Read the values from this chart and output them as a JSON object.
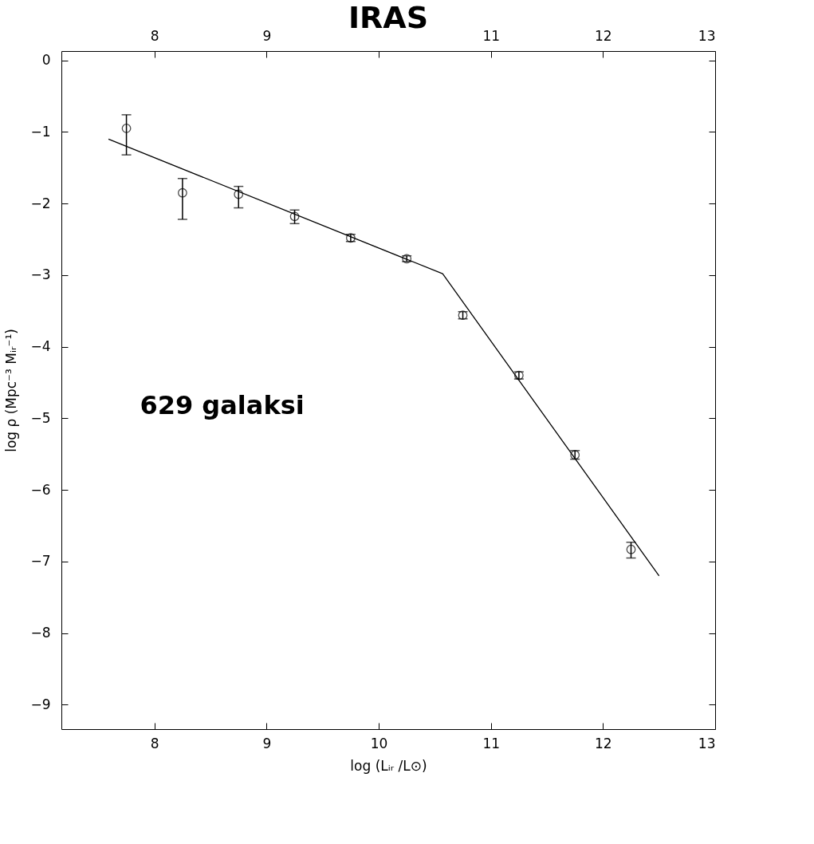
{
  "chart_data": {
    "type": "scatter",
    "xlabel": "log (Lᵢᵣ /L⊙)",
    "ylabel": "log ρ (Mpc⁻³ Mᵢᵣ⁻¹)",
    "annotations": [
      "IRAS",
      "629 galaksi"
    ],
    "xlim": [
      7.17,
      13
    ],
    "xticks": [
      8,
      9,
      10,
      11,
      12,
      13
    ],
    "x2lim": [
      7.17,
      13
    ],
    "x2ticks": [
      8,
      9,
      {
        "value": 10,
        "label": null
      },
      11,
      12,
      13
    ],
    "ylim": [
      -9.34,
      0.13
    ],
    "yticks": [
      0,
      -1,
      -2,
      -3,
      -4,
      -5,
      -6,
      -7,
      -8,
      -9
    ],
    "grid": false,
    "series": [
      {
        "marker": "circle",
        "color": "#000000",
        "x": [
          7.75,
          8.25,
          8.75,
          9.25,
          9.75,
          10.25,
          10.75,
          11.25,
          11.75,
          12.25
        ],
        "values": [
          -0.95,
          -1.85,
          -1.87,
          -2.18,
          -2.48,
          -2.77,
          -3.56,
          -4.4,
          -5.51,
          -6.83
        ],
        "errors": [
          [
            -1.32,
            -0.76
          ],
          [
            -2.22,
            -1.65
          ],
          [
            -2.06,
            -1.76
          ],
          [
            -2.28,
            -2.09
          ],
          0.05,
          0.04,
          0.05,
          0.05,
          0.06,
          [
            -6.95,
            -6.73
          ]
        ]
      },
      {
        "type": "line",
        "marker": "none",
        "color": "#000000",
        "x": [
          7.59,
          10.57,
          12.5
        ],
        "values": [
          -1.1,
          -2.98,
          -7.2
        ]
      }
    ]
  }
}
